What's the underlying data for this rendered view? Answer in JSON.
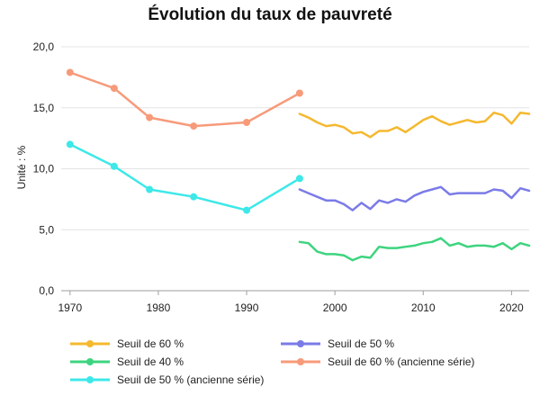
{
  "chart_data": {
    "type": "line",
    "title": "Évolution du taux de pauvreté",
    "xlabel": "",
    "ylabel": "Unité : %",
    "xlim": [
      1969,
      2022
    ],
    "ylim": [
      0,
      20
    ],
    "x_ticks": [
      "1970",
      "1980",
      "1990",
      "2000",
      "2010",
      "2020"
    ],
    "y_ticks": [
      "0,0",
      "5,0",
      "10,0",
      "15,0",
      "20,0"
    ],
    "grid": "horizontal",
    "legend_position": "bottom",
    "series": [
      {
        "name": "Seuil de 60 %",
        "color": "#F5B82E",
        "markers": false,
        "x": [
          1996,
          1997,
          1998,
          1999,
          2000,
          2001,
          2002,
          2003,
          2004,
          2005,
          2006,
          2007,
          2008,
          2009,
          2010,
          2011,
          2012,
          2013,
          2014,
          2015,
          2016,
          2017,
          2018,
          2019,
          2020,
          2021,
          2022
        ],
        "y": [
          14.5,
          14.2,
          13.8,
          13.5,
          13.6,
          13.4,
          12.9,
          13.0,
          12.6,
          13.1,
          13.1,
          13.4,
          13.0,
          13.5,
          14.0,
          14.3,
          13.9,
          13.6,
          13.8,
          14.0,
          13.8,
          13.9,
          14.6,
          14.4,
          13.7,
          14.6,
          14.5
        ]
      },
      {
        "name": "Seuil de 50 %",
        "color": "#7B7BE8",
        "markers": false,
        "x": [
          1996,
          1997,
          1998,
          1999,
          2000,
          2001,
          2002,
          2003,
          2004,
          2005,
          2006,
          2007,
          2008,
          2009,
          2010,
          2011,
          2012,
          2013,
          2014,
          2015,
          2016,
          2017,
          2018,
          2019,
          2020,
          2021,
          2022
        ],
        "y": [
          8.3,
          8.0,
          7.7,
          7.4,
          7.4,
          7.1,
          6.6,
          7.2,
          6.7,
          7.4,
          7.2,
          7.5,
          7.3,
          7.8,
          8.1,
          8.3,
          8.5,
          7.9,
          8.0,
          8.0,
          8.0,
          8.0,
          8.3,
          8.2,
          7.6,
          8.4,
          8.2
        ]
      },
      {
        "name": "Seuil de 40 %",
        "color": "#3DD47F",
        "markers": false,
        "x": [
          1996,
          1997,
          1998,
          1999,
          2000,
          2001,
          2002,
          2003,
          2004,
          2005,
          2006,
          2007,
          2008,
          2009,
          2010,
          2011,
          2012,
          2013,
          2014,
          2015,
          2016,
          2017,
          2018,
          2019,
          2020,
          2021,
          2022
        ],
        "y": [
          4.0,
          3.9,
          3.2,
          3.0,
          3.0,
          2.9,
          2.5,
          2.8,
          2.7,
          3.6,
          3.5,
          3.5,
          3.6,
          3.7,
          3.9,
          4.0,
          4.3,
          3.7,
          3.9,
          3.6,
          3.7,
          3.7,
          3.6,
          3.9,
          3.4,
          3.9,
          3.7
        ]
      },
      {
        "name": "Seuil de 60 % (ancienne série)",
        "color": "#F79A7A",
        "markers": true,
        "x": [
          1970,
          1975,
          1979,
          1984,
          1990,
          1996
        ],
        "y": [
          17.9,
          16.6,
          14.2,
          13.5,
          13.8,
          16.2
        ]
      },
      {
        "name": "Seuil de 50 % (ancienne série)",
        "color": "#3EE8E8",
        "markers": true,
        "x": [
          1970,
          1975,
          1979,
          1984,
          1990,
          1996
        ],
        "y": [
          12.0,
          10.2,
          8.3,
          7.7,
          6.6,
          9.2
        ]
      }
    ]
  }
}
